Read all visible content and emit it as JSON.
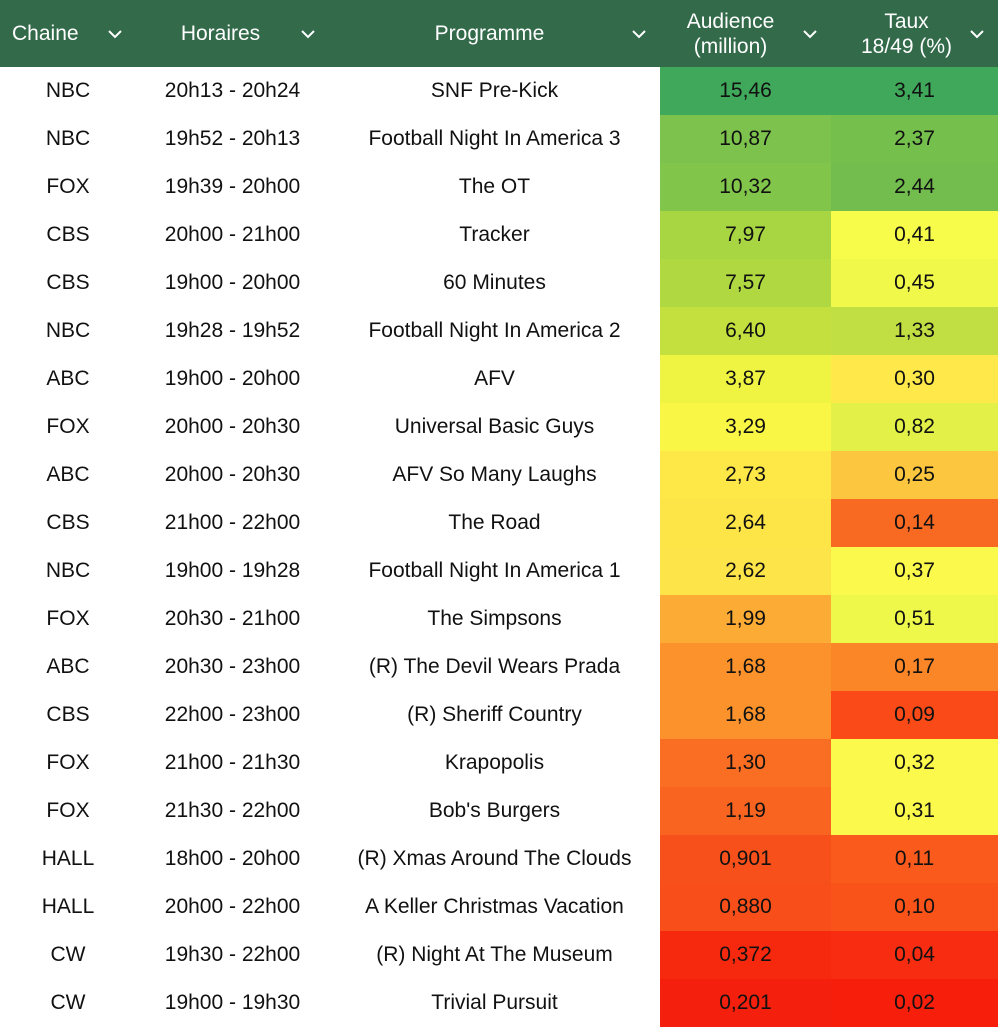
{
  "header": {
    "chaine": "Chaine",
    "horaires": "Horaires",
    "programme": "Programme",
    "audience_l1": "Audience",
    "audience_l2": "(million)",
    "taux_l1": "Taux",
    "taux_l2": "18/49 (%)",
    "chevron_icon": "chevron-down-icon"
  },
  "colors": {
    "header_bg": "#326a4a",
    "header_text": "#ffffff"
  },
  "rows": [
    {
      "chaine": "NBC",
      "horaires": "20h13 - 20h24",
      "programme": "SNF Pre-Kick",
      "audience": "15,46",
      "taux": "3,41",
      "aud_color": "#3fa85a",
      "taux_color": "#3fa85a"
    },
    {
      "chaine": "NBC",
      "horaires": "19h52 - 20h13",
      "programme": "Football Night In America 3",
      "audience": "10,87",
      "taux": "2,37",
      "aud_color": "#7cc24c",
      "taux_color": "#75bf4d"
    },
    {
      "chaine": "FOX",
      "horaires": "19h39 - 20h00",
      "programme": "The OT",
      "audience": "10,32",
      "taux": "2,44",
      "aud_color": "#82c54b",
      "taux_color": "#72bd4e"
    },
    {
      "chaine": "CBS",
      "horaires": "20h00 - 21h00",
      "programme": "Tracker",
      "audience": "7,97",
      "taux": "0,41",
      "aud_color": "#a8d542",
      "taux_color": "#f7fb4a"
    },
    {
      "chaine": "CBS",
      "horaires": "19h00 - 20h00",
      "programme": "60 Minutes",
      "audience": "7,57",
      "taux": "0,45",
      "aud_color": "#afd841",
      "taux_color": "#f0f84a"
    },
    {
      "chaine": "NBC",
      "horaires": "19h28 - 19h52",
      "programme": "Football Night In America 2",
      "audience": "6,40",
      "taux": "1,33",
      "aud_color": "#c3e03f",
      "taux_color": "#c1df42"
    },
    {
      "chaine": "ABC",
      "horaires": "19h00 - 20h00",
      "programme": "AFV",
      "audience": "3,87",
      "taux": "0,30",
      "aud_color": "#eff443",
      "taux_color": "#fee84a"
    },
    {
      "chaine": "FOX",
      "horaires": "20h00 - 20h30",
      "programme": "Universal Basic Guys",
      "audience": "3,29",
      "taux": "0,82",
      "aud_color": "#f9f645",
      "taux_color": "#e2f048"
    },
    {
      "chaine": "ABC",
      "horaires": "20h00 - 20h30",
      "programme": "AFV So Many Laughs",
      "audience": "2,73",
      "taux": "0,25",
      "aud_color": "#fde848",
      "taux_color": "#fcc73e"
    },
    {
      "chaine": "CBS",
      "horaires": "21h00 - 22h00",
      "programme": "The Road",
      "audience": "2,64",
      "taux": "0,14",
      "aud_color": "#fde548",
      "taux_color": "#f86a22"
    },
    {
      "chaine": "NBC",
      "horaires": "19h00 - 19h28",
      "programme": "Football Night In America 1",
      "audience": "2,62",
      "taux": "0,37",
      "aud_color": "#fde448",
      "taux_color": "#fbf94b"
    },
    {
      "chaine": "FOX",
      "horaires": "20h30 - 21h00",
      "programme": "The Simpsons",
      "audience": "1,99",
      "taux": "0,51",
      "aud_color": "#fcab35",
      "taux_color": "#eef84a"
    },
    {
      "chaine": "ABC",
      "horaires": "20h30 - 23h00",
      "programme": "(R) The Devil Wears Prada",
      "audience": "1,68",
      "taux": "0,17",
      "aud_color": "#fb922c",
      "taux_color": "#fb8628"
    },
    {
      "chaine": "CBS",
      "horaires": "22h00 - 23h00",
      "programme": "(R) Sheriff Country",
      "audience": "1,68",
      "taux": "0,09",
      "aud_color": "#fb922c",
      "taux_color": "#fa4a18"
    },
    {
      "chaine": "FOX",
      "horaires": "21h00 - 21h30",
      "programme": "Krapopolis",
      "audience": "1,30",
      "taux": "0,32",
      "aud_color": "#f96e22",
      "taux_color": "#fbf94b"
    },
    {
      "chaine": "FOX",
      "horaires": "21h30 - 22h00",
      "programme": "Bob's Burgers",
      "audience": "1,19",
      "taux": "0,31",
      "aud_color": "#f96520",
      "taux_color": "#fbf94b"
    },
    {
      "chaine": "HALL",
      "horaires": "18h00 - 20h00",
      "programme": "(R) Xmas Around The Clouds",
      "audience": "0,901",
      "taux": "0,11",
      "aud_color": "#f8501a",
      "taux_color": "#fa5a1c"
    },
    {
      "chaine": "HALL",
      "horaires": "20h00 - 22h00",
      "programme": "A Keller Christmas Vacation",
      "audience": "0,880",
      "taux": "0,10",
      "aud_color": "#f84e19",
      "taux_color": "#fa531a"
    },
    {
      "chaine": "CW",
      "horaires": "19h30 - 22h00",
      "programme": "(R) Night At The Museum",
      "audience": "0,372",
      "taux": "0,04",
      "aud_color": "#f6290f",
      "taux_color": "#f82c10"
    },
    {
      "chaine": "CW",
      "horaires": "19h00 - 19h30",
      "programme": "Trivial Pursuit",
      "audience": "0,201",
      "taux": "0,02",
      "aud_color": "#f41f0c",
      "taux_color": "#f71f0c"
    }
  ]
}
